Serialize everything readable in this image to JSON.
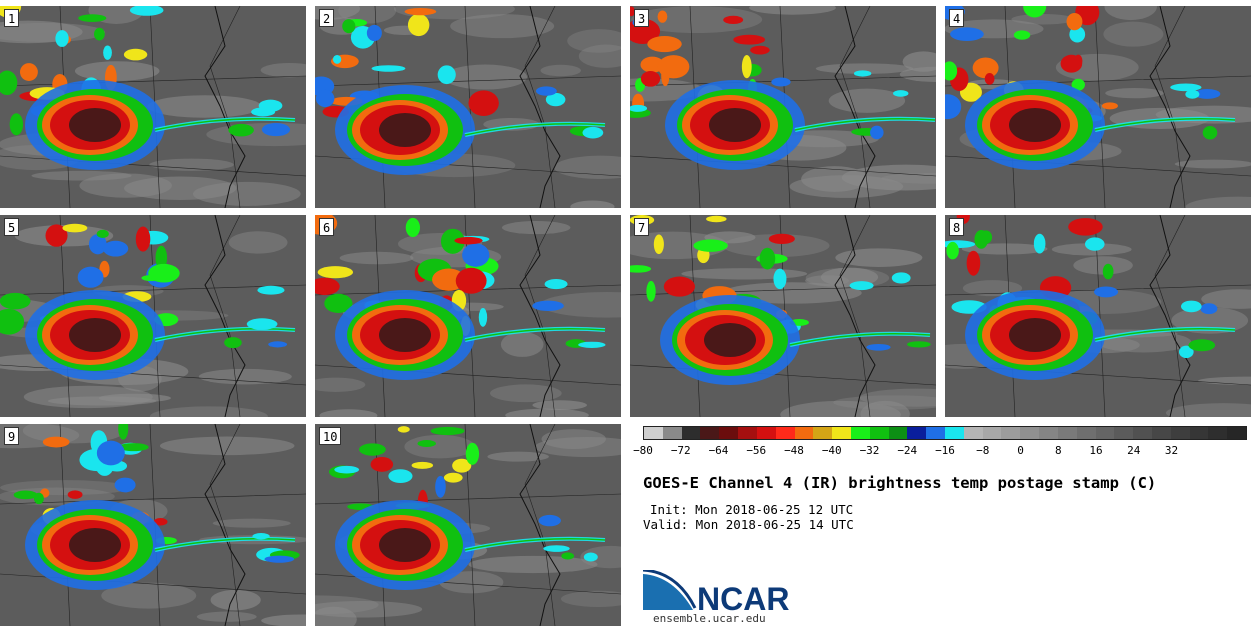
{
  "panels": [
    {
      "label": "1"
    },
    {
      "label": "2"
    },
    {
      "label": "3"
    },
    {
      "label": "4"
    },
    {
      "label": "5"
    },
    {
      "label": "6"
    },
    {
      "label": "7"
    },
    {
      "label": "8"
    },
    {
      "label": "9"
    },
    {
      "label": "10"
    }
  ],
  "colorbar": {
    "colors": [
      "#cfcfcf",
      "#8a8a8a",
      "#2d2d2d",
      "#4a1818",
      "#6b0d0d",
      "#a50f0f",
      "#d41010",
      "#ff2a1a",
      "#f26b0f",
      "#d4a516",
      "#f0e51a",
      "#19ef19",
      "#10c010",
      "#0c8f14",
      "#0a1e9c",
      "#1f6fe6",
      "#1ae5ee",
      "#b5b5b5",
      "#a8a8a8",
      "#9c9c9c",
      "#909090",
      "#858585",
      "#7a7a7a",
      "#6f6f6f",
      "#656565",
      "#5b5b5b",
      "#515151",
      "#474747",
      "#3e3e3e",
      "#363636",
      "#2e2e2e",
      "#262626"
    ],
    "ticks": [
      "−80",
      "−72",
      "−64",
      "−56",
      "−48",
      "−40",
      "−32",
      "−24",
      "−16",
      "−8",
      "0",
      "8",
      "16",
      "24",
      "32"
    ]
  },
  "title": "GOES-E Channel 4 (IR) brightness temp postage stamp (C)",
  "init": "Init: Mon 2018-06-25 12 UTC",
  "valid": "Valid: Mon 2018-06-25 14 UTC",
  "logo_text": "NCAR",
  "url": "ensemble.ucar.edu",
  "colors": {
    "background": "#5c5c5c",
    "ncar_blue": "#1a6fb0",
    "ncar_navy": "#0d3a78"
  }
}
